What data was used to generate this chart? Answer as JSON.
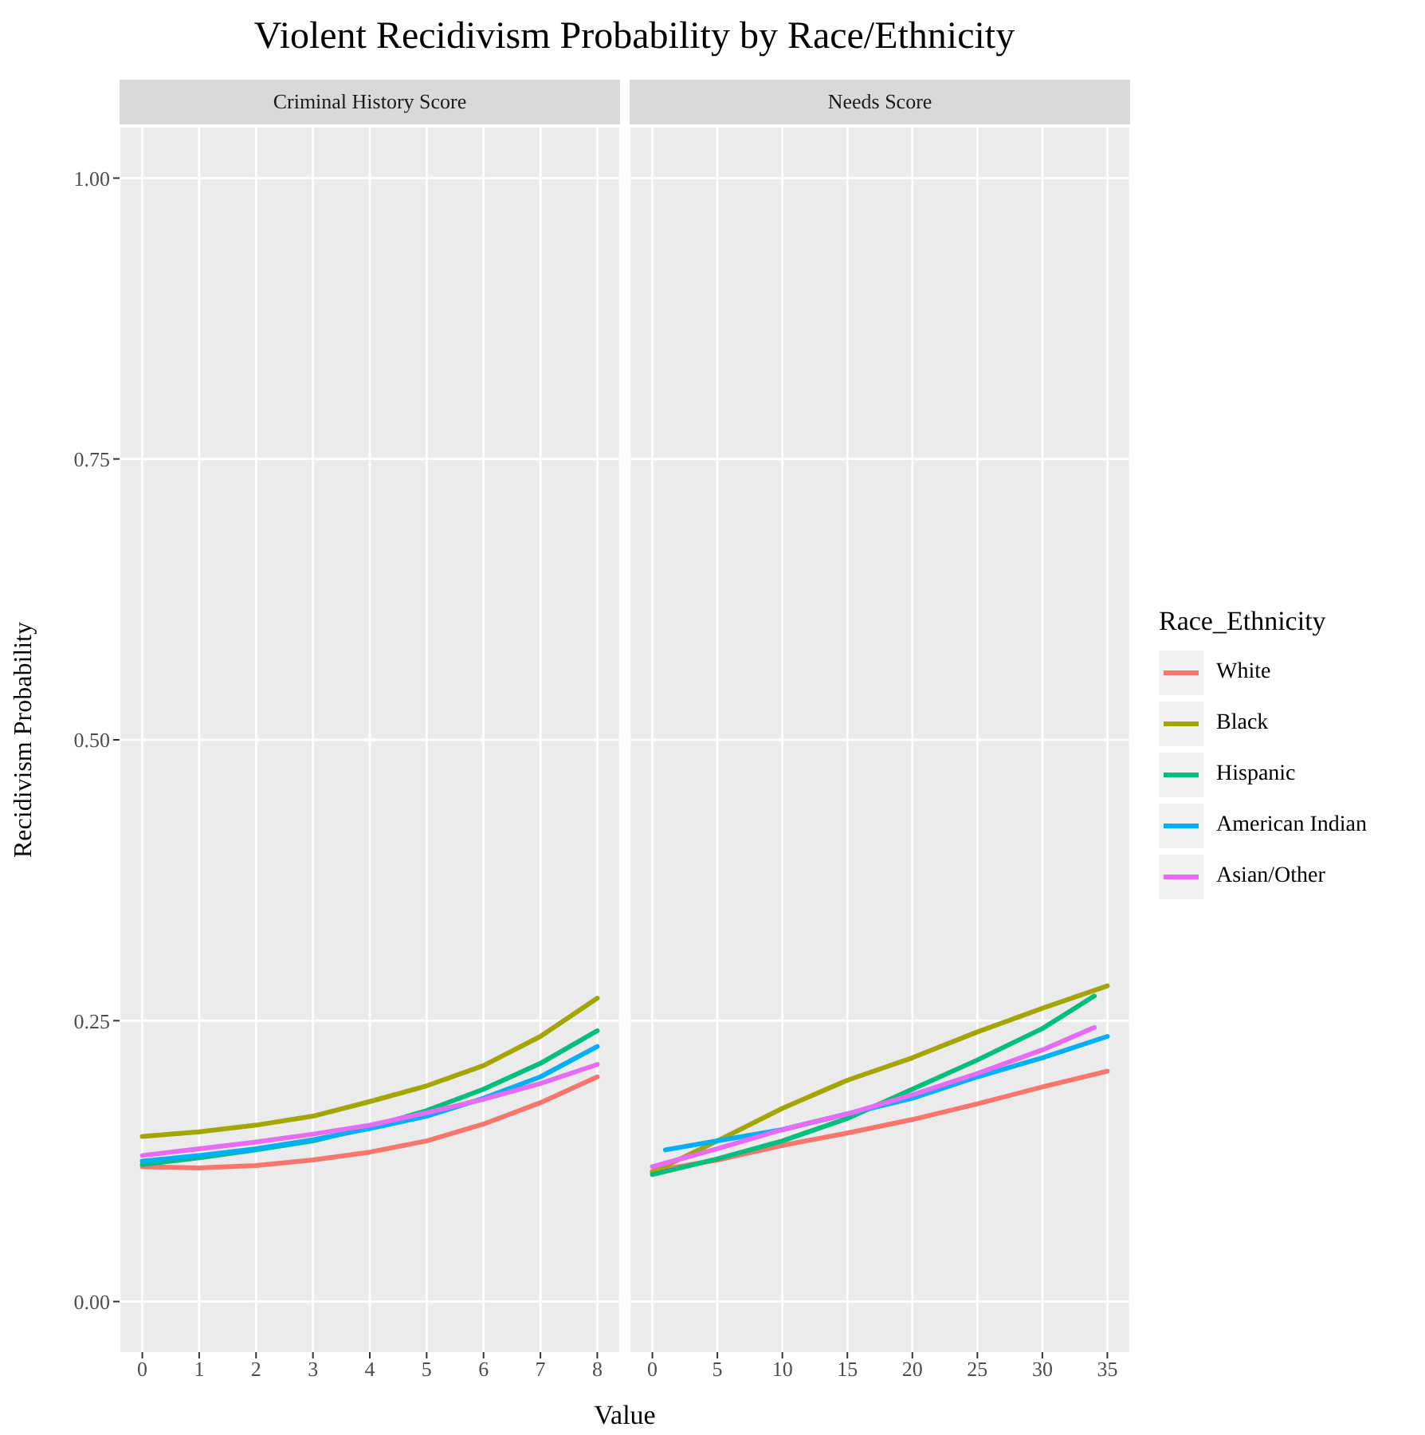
{
  "chart_data": [
    {
      "type": "line",
      "title": "Violent Recidivism Probability by Race/Ethnicity",
      "subtitle": "Criminal History Score",
      "xlabel": "Value",
      "ylabel": "Recidivism Probability",
      "legend_title": "Race_Ethnicity",
      "legend": "right",
      "grid": true,
      "xlim": [
        -0.4,
        8.4
      ],
      "xticks": [
        0,
        1,
        2,
        3,
        4,
        5,
        6,
        7,
        8
      ],
      "ylim": [
        -0.045,
        1.045
      ],
      "yticks": [
        {
          "value": 0,
          "label": "0.00"
        },
        {
          "value": 0.25,
          "label": "0.25"
        },
        {
          "value": 0.5,
          "label": "0.50"
        },
        {
          "value": 0.75,
          "label": "0.75"
        },
        {
          "value": 1,
          "label": "1.00"
        }
      ],
      "x": [
        0,
        1,
        2,
        3,
        4,
        5,
        6,
        7,
        8
      ],
      "series": [
        {
          "name": "White",
          "color": "#f8766d",
          "values": [
            0.12,
            0.119,
            0.121,
            0.126,
            0.133,
            0.143,
            0.158,
            0.177,
            0.2
          ]
        },
        {
          "name": "Black",
          "color": "#a3a500",
          "values": [
            0.147,
            0.151,
            0.157,
            0.165,
            0.178,
            0.192,
            0.21,
            0.236,
            0.27
          ]
        },
        {
          "name": "Hispanic",
          "color": "#00bf7d",
          "values": [
            0.122,
            0.128,
            0.135,
            0.143,
            0.155,
            0.17,
            0.189,
            0.212,
            0.241
          ]
        },
        {
          "name": "American Indian",
          "color": "#00b0f6",
          "values": [
            0.125,
            0.13,
            0.136,
            0.144,
            0.154,
            0.165,
            0.181,
            0.2,
            0.227
          ]
        },
        {
          "name": "Asian/Other",
          "color": "#e76bf3",
          "values": [
            0.13,
            0.136,
            0.142,
            0.149,
            0.157,
            0.168,
            0.18,
            0.194,
            0.211
          ]
        }
      ]
    },
    {
      "type": "line",
      "subtitle": "Needs Score",
      "grid": true,
      "tick_labels": "x",
      "xlim": [
        -1.75,
        36.75
      ],
      "xticks": [
        0,
        5,
        10,
        15,
        20,
        25,
        30,
        35
      ],
      "ylim": [
        -0.045,
        1.045
      ],
      "yticks": [
        0,
        0.25,
        0.5,
        0.75,
        1
      ],
      "series": [
        {
          "color": "#f8766d",
          "x": [
            0,
            5,
            10,
            15,
            20,
            25,
            30,
            35
          ],
          "values": [
            0.116,
            0.126,
            0.139,
            0.15,
            0.162,
            0.176,
            0.191,
            0.205
          ]
        },
        {
          "color": "#a3a500",
          "x": [
            0,
            5,
            10,
            15,
            20,
            25,
            30,
            35
          ],
          "values": [
            0.115,
            0.143,
            0.172,
            0.197,
            0.217,
            0.24,
            0.261,
            0.281
          ]
        },
        {
          "color": "#00bf7d",
          "x": [
            0,
            5,
            10,
            15,
            20,
            25,
            30,
            34
          ],
          "values": [
            0.113,
            0.127,
            0.143,
            0.163,
            0.189,
            0.215,
            0.243,
            0.272
          ]
        },
        {
          "color": "#00b0f6",
          "x": [
            1,
            5,
            10,
            15,
            20,
            25,
            30,
            35
          ],
          "values": [
            0.135,
            0.143,
            0.153,
            0.167,
            0.181,
            0.2,
            0.217,
            0.236
          ]
        },
        {
          "color": "#e76bf3",
          "x": [
            0,
            5,
            10,
            15,
            20,
            25,
            30,
            34
          ],
          "values": [
            0.12,
            0.136,
            0.153,
            0.167,
            0.184,
            0.203,
            0.224,
            0.244
          ]
        }
      ]
    }
  ]
}
